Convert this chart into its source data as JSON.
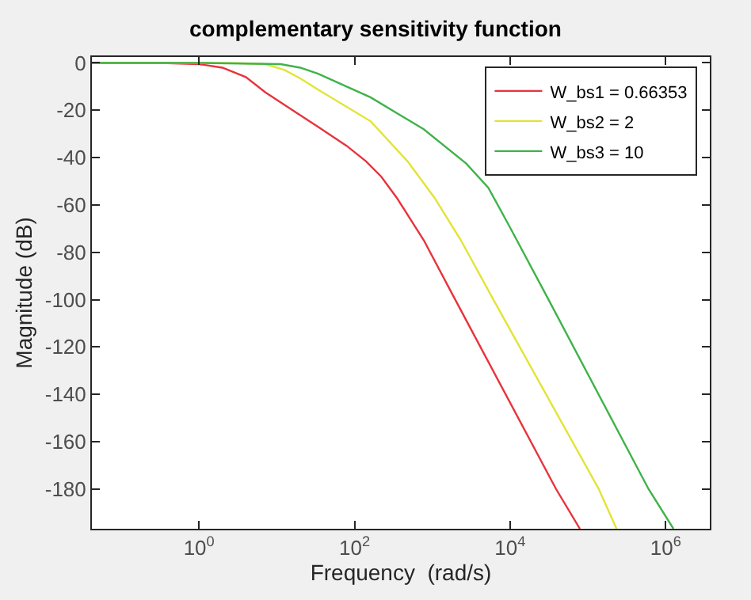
{
  "chart_data": {
    "type": "line",
    "title": "complementary sensitivity function",
    "xlabel": "Frequency  (rad/s)",
    "ylabel": "Magnitude (dB)",
    "log": "x",
    "xlim": [
      0.042,
      3700000
    ],
    "xticks": [
      {
        "value": 1,
        "label": "10$^{0}$"
      },
      {
        "value": 100,
        "label": "10$^{2}$"
      },
      {
        "value": 10000,
        "label": "10$^{4}$"
      },
      {
        "value": 1000000,
        "label": "10$^{6}$"
      }
    ],
    "ylim": [
      -196.8,
      2.5
    ],
    "yticks": [
      0,
      -20,
      -40,
      -60,
      -80,
      -100,
      -120,
      -140,
      -160,
      -180
    ],
    "legend": "top right",
    "line_style": "solid",
    "marker": "none",
    "series": [
      {
        "name": "W_bs1 = 0.66353",
        "color": "#e8333c",
        "x": [
          0.042,
          0.32,
          1,
          2,
          4,
          7.1,
          16,
          34,
          79,
          140,
          220,
          350,
          780,
          1950,
          39000,
          79000
        ],
        "values": [
          0,
          0,
          -0.5,
          -2,
          -6,
          -12.4,
          -20,
          -27,
          -35,
          -41.5,
          -48,
          -57,
          -75,
          -99.7,
          -180,
          -196.8
        ]
      },
      {
        "name": "W_bs2 = 2",
        "color": "#e3e336",
        "x": [
          0.042,
          1,
          3.2,
          7.1,
          12.6,
          20,
          34,
          162,
          479,
          1070,
          2340,
          6030,
          138000,
          234000
        ],
        "values": [
          0,
          0,
          -0.1,
          -0.5,
          -3,
          -6.5,
          -11.3,
          -24.7,
          -41.5,
          -57,
          -75,
          -99.7,
          -180,
          -196.8
        ]
      },
      {
        "name": "W_bs3 = 10",
        "color": "#3fb34a",
        "x": [
          0.042,
          1,
          11.2,
          20,
          34,
          162,
          776,
          2750,
          5250,
          9550,
          30900,
          603000,
          1260000
        ],
        "values": [
          0,
          0,
          -0.5,
          -2,
          -4.6,
          -14.6,
          -28,
          -42.6,
          -52.7,
          -68.3,
          -99.7,
          -180,
          -196.8
        ]
      }
    ]
  }
}
